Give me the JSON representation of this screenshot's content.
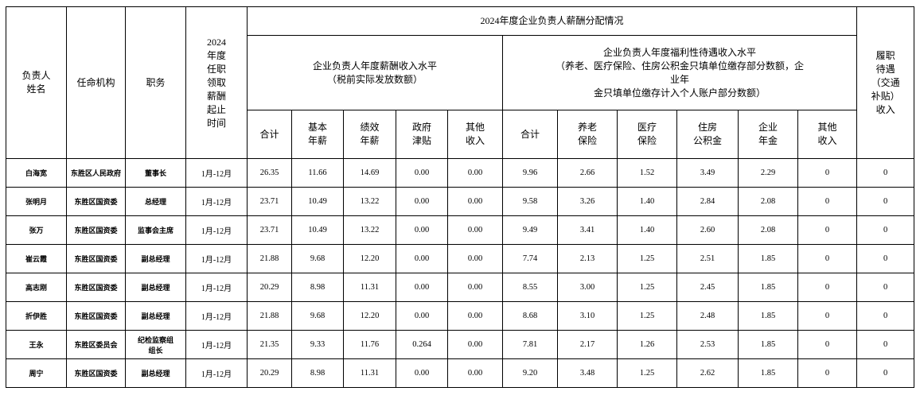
{
  "table": {
    "header": {
      "col_name": "负责人\n姓名",
      "col_agency": "任命机构",
      "col_position": "职务",
      "col_period": "2024\n年度\n任职\n领取\n薪酬\n起止\n时间",
      "span_title": "2024年度企业负责人薪酬分配情况",
      "group_salary": "企业负责人年度薪酬收入水平\n（税前实际发放数额）",
      "group_welfare": "企业负责人年度福利性待遇收入水平\n（养老、医疗保险、住房公积金只填单位缴存部分数额，企\n业年\n金只填单位缴存计入个人账户部分数额）",
      "col_duty_allowance": "履职\n待遇\n（交通\n补贴）\n收入",
      "sub_labels": [
        "合计",
        "基本\n年薪",
        "绩效\n年薪",
        "政府\n津贴",
        "其他\n收入",
        "合计",
        "养老\n保险",
        "医疗\n保险",
        "住房\n公积金",
        "企业\n年金",
        "其他\n收入"
      ]
    },
    "rows": [
      [
        "白海宽",
        "东胜区人民政府",
        "董事长",
        "1月-12月",
        "26.35",
        "11.66",
        "14.69",
        "0.00",
        "0.00",
        "9.96",
        "2.66",
        "1.52",
        "3.49",
        "2.29",
        "0",
        "0"
      ],
      [
        "张明月",
        "东胜区国资委",
        "总经理",
        "1月-12月",
        "23.71",
        "10.49",
        "13.22",
        "0.00",
        "0.00",
        "9.58",
        "3.26",
        "1.40",
        "2.84",
        "2.08",
        "0",
        "0"
      ],
      [
        "张万",
        "东胜区国资委",
        "监事会主席",
        "1月-12月",
        "23.71",
        "10.49",
        "13.22",
        "0.00",
        "0.00",
        "9.49",
        "3.41",
        "1.40",
        "2.60",
        "2.08",
        "0",
        "0"
      ],
      [
        "崔云霞",
        "东胜区国资委",
        "副总经理",
        "1月-12月",
        "21.88",
        "9.68",
        "12.20",
        "0.00",
        "0.00",
        "7.74",
        "2.13",
        "1.25",
        "2.51",
        "1.85",
        "0",
        "0"
      ],
      [
        "高志刚",
        "东胜区国资委",
        "副总经理",
        "1月-12月",
        "20.29",
        "8.98",
        "11.31",
        "0.00",
        "0.00",
        "8.55",
        "3.00",
        "1.25",
        "2.45",
        "1.85",
        "0",
        "0"
      ],
      [
        "折伊胜",
        "东胜区国资委",
        "副总经理",
        "1月-12月",
        "21.88",
        "9.68",
        "12.20",
        "0.00",
        "0.00",
        "8.68",
        "3.10",
        "1.25",
        "2.48",
        "1.85",
        "0",
        "0"
      ],
      [
        "王永",
        "东胜区委员会",
        "纪检监察组\n组长",
        "1月-12月",
        "21.35",
        "9.33",
        "11.76",
        "0.264",
        "0.00",
        "7.81",
        "2.17",
        "1.26",
        "2.53",
        "1.85",
        "0",
        "0"
      ],
      [
        "周宁",
        "东胜区国资委",
        "副总经理",
        "1月-12月",
        "20.29",
        "8.98",
        "11.31",
        "0.00",
        "0.00",
        "9.20",
        "3.48",
        "1.25",
        "2.62",
        "1.85",
        "0",
        "0"
      ]
    ]
  },
  "colors": {
    "border": "#000000",
    "text": "#000000",
    "background": "#ffffff"
  }
}
